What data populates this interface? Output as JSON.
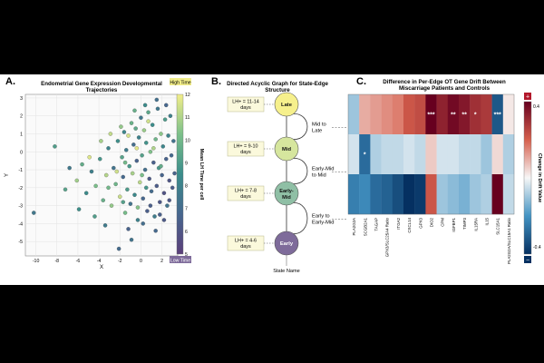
{
  "colors": {
    "bg": "#000000",
    "panel": "#ffffff",
    "late": "#f6f08c",
    "mid": "#d6e69e",
    "earlymid": "#8fbfa5",
    "early": "#7e6b9a",
    "window": "#fbf9dc",
    "heat_pos": "#67001f",
    "heat_neg": "#053061"
  },
  "panelA": {
    "letter": "A.",
    "title_line1": "Endometrial Gene Expression Developmental",
    "title_line2": "Trajectories",
    "chart_data": {
      "type": "scatter",
      "title": "Endometrial Gene Expression Developmental Trajectories",
      "xlabel": "X",
      "ylabel": "Y",
      "xlim": [
        -11,
        3.5
      ],
      "ylim": [
        -5.8,
        3.2
      ],
      "xticks": [
        -10,
        -8,
        -6,
        -4,
        -2,
        0,
        2
      ],
      "yticks": [
        -5,
        -4,
        -3,
        -2,
        -1,
        0,
        1,
        2,
        3
      ],
      "grid": true,
      "colorbar": {
        "label": "Mean LH Time per cell",
        "min": 5,
        "max": 12,
        "ticks": [
          5,
          6,
          7,
          8,
          9,
          10,
          11,
          12
        ],
        "high_label": "High Time",
        "low_label": "Low Time"
      },
      "points": [
        [
          -10.2,
          -3.4,
          7.6
        ],
        [
          -8.2,
          0.3,
          9.1
        ],
        [
          -6.1,
          -1.6,
          10.8
        ],
        [
          -5.2,
          -2.3,
          8.4
        ],
        [
          -5.6,
          -0.7,
          9.6
        ],
        [
          -4.7,
          -1.1,
          7.9
        ],
        [
          -4.3,
          -1.9,
          10.2
        ],
        [
          -3.9,
          -0.4,
          8.8
        ],
        [
          -3.6,
          -2.7,
          9.7
        ],
        [
          -3.3,
          -1.3,
          11.1
        ],
        [
          -3.1,
          0.2,
          8.1
        ],
        [
          -2.8,
          -3.0,
          10.6
        ],
        [
          -2.6,
          -0.9,
          7.4
        ],
        [
          -2.4,
          -1.8,
          9.9
        ],
        [
          -2.2,
          0.6,
          8.6
        ],
        [
          -2.1,
          -5.4,
          7.0
        ],
        [
          -2.0,
          -2.5,
          11.4
        ],
        [
          -1.8,
          -0.3,
          9.3
        ],
        [
          -1.7,
          -1.4,
          6.9
        ],
        [
          -1.6,
          1.1,
          8.2
        ],
        [
          -1.5,
          -3.4,
          10.1
        ],
        [
          -1.4,
          0.1,
          7.7
        ],
        [
          -1.3,
          -2.1,
          9.0
        ],
        [
          -1.2,
          0.9,
          11.6
        ],
        [
          -1.1,
          -0.8,
          8.9
        ],
        [
          -1.0,
          -2.9,
          7.3
        ],
        [
          -0.9,
          1.6,
          9.8
        ],
        [
          -0.8,
          -1.2,
          10.9
        ],
        [
          -0.7,
          0.4,
          7.1
        ],
        [
          -0.6,
          -2.4,
          8.3
        ],
        [
          -0.5,
          1.3,
          9.5
        ],
        [
          -0.4,
          -0.5,
          6.6
        ],
        [
          -0.3,
          -3.1,
          10.4
        ],
        [
          -0.2,
          0.8,
          8.0
        ],
        [
          -0.1,
          -1.7,
          11.2
        ],
        [
          0.0,
          1.9,
          7.5
        ],
        [
          0.1,
          -0.2,
          9.2
        ],
        [
          0.2,
          -2.6,
          6.8
        ],
        [
          0.3,
          1.2,
          10.7
        ],
        [
          0.4,
          -1.0,
          7.2
        ],
        [
          0.5,
          0.5,
          8.7
        ],
        [
          0.6,
          -3.3,
          6.4
        ],
        [
          0.7,
          2.2,
          9.4
        ],
        [
          0.8,
          -1.5,
          6.2
        ],
        [
          0.9,
          0.0,
          10.3
        ],
        [
          1.0,
          -2.2,
          7.0
        ],
        [
          1.1,
          1.5,
          8.5
        ],
        [
          1.2,
          -0.6,
          6.5
        ],
        [
          1.3,
          -3.6,
          7.8
        ],
        [
          1.4,
          0.7,
          9.9
        ],
        [
          1.5,
          -1.9,
          6.3
        ],
        [
          1.6,
          2.4,
          7.6
        ],
        [
          1.7,
          -0.9,
          8.9
        ],
        [
          1.8,
          -2.8,
          6.1
        ],
        [
          1.9,
          1.0,
          10.5
        ],
        [
          2.0,
          -1.3,
          6.7
        ],
        [
          2.1,
          0.3,
          8.2
        ],
        [
          2.2,
          -2.3,
          5.9
        ],
        [
          2.3,
          1.8,
          9.0
        ],
        [
          2.4,
          -0.4,
          6.6
        ],
        [
          2.5,
          -3.0,
          7.4
        ],
        [
          2.6,
          0.9,
          8.1
        ],
        [
          2.7,
          -1.6,
          6.0
        ],
        [
          2.8,
          2.0,
          7.9
        ],
        [
          2.9,
          -0.2,
          6.9
        ],
        [
          3.0,
          -2.0,
          6.3
        ],
        [
          -1.9,
          1.4,
          10.6
        ],
        [
          -0.6,
          2.3,
          9.7
        ],
        [
          0.4,
          2.6,
          8.4
        ],
        [
          1.5,
          2.9,
          7.2
        ],
        [
          2.4,
          2.6,
          6.8
        ],
        [
          -2.9,
          1.0,
          11.3
        ],
        [
          -3.8,
          0.6,
          10.9
        ],
        [
          -4.9,
          -0.3,
          11.7
        ],
        [
          -6.8,
          -0.9,
          7.6
        ],
        [
          -7.2,
          -2.1,
          9.3
        ],
        [
          -5.9,
          -3.2,
          8.6
        ],
        [
          -4.4,
          -3.6,
          9.1
        ],
        [
          -3.4,
          -4.1,
          7.7
        ],
        [
          -1.2,
          -4.3,
          6.6
        ],
        [
          0.2,
          -4.0,
          7.1
        ],
        [
          1.4,
          -4.4,
          6.9
        ],
        [
          2.2,
          -3.8,
          6.2
        ],
        [
          -0.3,
          -3.8,
          8.0
        ],
        [
          0.9,
          -3.0,
          6.4
        ],
        [
          1.8,
          -3.5,
          6.5
        ],
        [
          2.7,
          -2.7,
          6.1
        ],
        [
          3.1,
          0.6,
          7.3
        ],
        [
          3.2,
          -1.2,
          6.6
        ],
        [
          -0.9,
          -4.9,
          7.4
        ],
        [
          0.7,
          1.7,
          11.5
        ],
        [
          -0.4,
          0.2,
          11.8
        ],
        [
          1.2,
          0.2,
          11.0
        ],
        [
          -1.5,
          -0.6,
          10.0
        ],
        [
          0.1,
          -1.3,
          10.2
        ],
        [
          1.9,
          -0.8,
          9.6
        ],
        [
          -2.3,
          -1.1,
          11.5
        ],
        [
          -3.1,
          -2.0,
          10.0
        ],
        [
          -1.7,
          -2.8,
          9.2
        ],
        [
          0.5,
          -2.0,
          8.8
        ]
      ]
    }
  },
  "panelB": {
    "letter": "B.",
    "title_line1": "Directed Acyclic Graph for State-Edge",
    "title_line2": "Structure",
    "nodes": [
      {
        "label1": "Late",
        "label2": "",
        "window1": "LH+ = 11-14",
        "window2": "days"
      },
      {
        "label1": "Mid",
        "label2": "",
        "window1": "LH+ = 9-10",
        "window2": "days"
      },
      {
        "label1": "Early-",
        "label2": "Mid",
        "window1": "LH+ = 7-8",
        "window2": "days"
      },
      {
        "label1": "Early",
        "label2": "",
        "window1": "LH+ = 4-6",
        "window2": "days"
      }
    ],
    "edges": [
      {
        "line1": "Mid to",
        "line2": "Late"
      },
      {
        "line1": "Early-Mid",
        "line2": "to Mid"
      },
      {
        "line1": "Early to",
        "line2": "Early-Mid"
      }
    ],
    "state_name": "State Name"
  },
  "panelC": {
    "letter": "C.",
    "title_line1": "Difference in Per-Edge OT Gene Drift Between",
    "title_line2": "Miscarriage Patients and Controls",
    "chart_data": {
      "type": "heatmap",
      "title": "Difference in Per-Edge OT Gene Drift Between Miscarriage Patients and Controls",
      "columns": [
        "PLA2G2A",
        "SCGB2A1",
        "TAGAP",
        "GPX3/SLC25A4 Ratio",
        "ITGA2",
        "CXCL14",
        "GPX3",
        "DIO2",
        "CPM",
        "IGFBP1",
        "TIMP3",
        "IL15RA",
        "IL15",
        "SLC15A1",
        "PLA2G2A/SLC15A1 Ratio"
      ],
      "rows": [
        "Mid to Late",
        "Early-Mid to Mid",
        "Early to Early-Mid"
      ],
      "values": [
        [
          -0.1,
          0.1,
          0.12,
          0.14,
          0.16,
          0.22,
          0.24,
          0.4,
          0.33,
          0.38,
          0.35,
          0.3,
          0.28,
          -0.32,
          0.02
        ],
        [
          -0.04,
          -0.28,
          -0.08,
          -0.06,
          -0.06,
          -0.04,
          -0.06,
          0.06,
          -0.04,
          -0.04,
          -0.06,
          -0.06,
          -0.1,
          0.04,
          -0.08
        ],
        [
          -0.24,
          -0.22,
          -0.28,
          -0.3,
          -0.34,
          -0.4,
          -0.38,
          0.22,
          -0.1,
          -0.12,
          -0.14,
          -0.1,
          -0.08,
          0.4,
          -0.06
        ]
      ],
      "significance": [
        [
          "",
          "",
          "",
          "",
          "",
          "",
          "",
          "***",
          "",
          "**",
          "**",
          "*",
          "",
          "***",
          ""
        ],
        [
          "",
          "*",
          "",
          "",
          "",
          "",
          "",
          "",
          "",
          "",
          "",
          "",
          "",
          "",
          ""
        ],
        [
          "",
          "",
          "",
          "",
          "",
          "",
          "",
          "",
          "",
          "",
          "",
          "",
          "",
          "",
          ""
        ]
      ],
      "colorbar": {
        "label": "Change in Drift Value",
        "min": -0.4,
        "max": 0.4,
        "ticks": [
          "0.4",
          "-0.4"
        ],
        "plus": "+",
        "minus": "−"
      }
    }
  }
}
